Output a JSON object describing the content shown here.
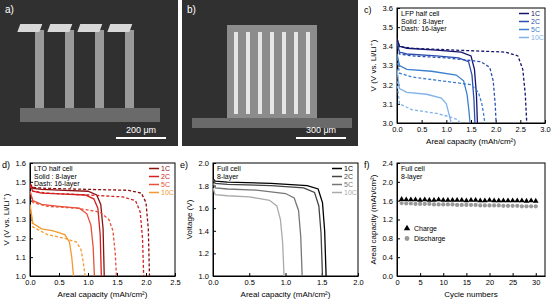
{
  "chart_data": [
    {
      "type": "image",
      "title": "a)",
      "annotations": [
        "200 μm"
      ]
    },
    {
      "type": "image",
      "title": "b)",
      "annotations": [
        "300 μm"
      ]
    },
    {
      "type": "line",
      "title": "c)",
      "x_label": "Areal capacity (mAh/cm²)",
      "y_label": "V (V vs. Li/Li⁺)",
      "annotations": [
        "LFP half cell",
        "Solid : 8-layer",
        "Dash: 16-layer"
      ],
      "xlim": [
        0,
        3.0
      ],
      "ylim": [
        3.0,
        3.6
      ],
      "xticks": [
        {
          "value": 0,
          "label": "0.0"
        },
        0.5,
        {
          "value": 1,
          "label": "1.0"
        },
        1.5,
        {
          "value": 2,
          "label": "2.0"
        },
        2.5,
        {
          "value": 3,
          "label": "3.0"
        }
      ],
      "yticks": [
        {
          "value": 3,
          "label": "3.0"
        },
        3.1,
        3.2,
        3.3,
        3.4,
        3.5,
        3.6
      ],
      "legend": "top-right",
      "series": [
        {
          "name": "1C",
          "color": "#14146e",
          "line_style": "solid",
          "x": [
            0,
            0.05,
            0.2,
            0.8,
            1.3,
            1.5,
            1.57,
            1.61,
            1.63
          ],
          "values": [
            3.44,
            3.4,
            3.39,
            3.38,
            3.37,
            3.35,
            3.28,
            3.15,
            3.0
          ]
        },
        {
          "name": "2C",
          "color": "#2b4fb0",
          "line_style": "solid",
          "x": [
            0,
            0.05,
            0.2,
            0.8,
            1.25,
            1.45,
            1.52,
            1.56,
            1.58
          ],
          "values": [
            3.42,
            3.37,
            3.36,
            3.35,
            3.34,
            3.32,
            3.25,
            3.12,
            3.0
          ]
        },
        {
          "name": "5C",
          "color": "#3b7fd0",
          "line_style": "solid",
          "x": [
            0,
            0.05,
            0.2,
            0.7,
            1.2,
            1.35,
            1.42,
            1.46,
            1.48
          ],
          "values": [
            3.36,
            3.3,
            3.28,
            3.27,
            3.25,
            3.22,
            3.15,
            3.06,
            3.0
          ]
        },
        {
          "name": "10C",
          "color": "#7fb2ea",
          "line_style": "solid",
          "x": [
            0,
            0.05,
            0.2,
            0.6,
            0.9,
            1.0,
            1.06,
            1.1
          ],
          "values": [
            3.28,
            3.18,
            3.16,
            3.15,
            3.13,
            3.1,
            3.04,
            3.0
          ]
        },
        {
          "name": "1C",
          "color": "#14146e",
          "line_style": "dashed",
          "x": [
            0,
            0.05,
            0.3,
            1.2,
            2.2,
            2.45,
            2.55,
            2.6,
            2.63
          ],
          "values": [
            3.44,
            3.4,
            3.39,
            3.38,
            3.37,
            3.35,
            3.28,
            3.15,
            3.0
          ]
        },
        {
          "name": "2C",
          "color": "#2b4fb0",
          "line_style": "dashed",
          "x": [
            0,
            0.05,
            0.3,
            1.0,
            1.7,
            1.88,
            1.95,
            1.99,
            2.01
          ],
          "values": [
            3.42,
            3.36,
            3.35,
            3.34,
            3.32,
            3.29,
            3.22,
            3.1,
            3.0
          ]
        },
        {
          "name": "5C",
          "color": "#3b7fd0",
          "line_style": "dashed",
          "x": [
            0,
            0.05,
            0.3,
            0.9,
            1.5,
            1.65,
            1.72,
            1.76,
            1.78
          ],
          "values": [
            3.34,
            3.26,
            3.24,
            3.22,
            3.2,
            3.16,
            3.1,
            3.04,
            3.0
          ]
        },
        {
          "name": "10C",
          "color": "#7fb2ea",
          "line_style": "dashed",
          "x": [
            0,
            0.05,
            0.3,
            0.8,
            1.1,
            1.2,
            1.25,
            1.28
          ],
          "values": [
            3.22,
            3.1,
            3.07,
            3.05,
            3.03,
            3.02,
            3.01,
            3.0
          ]
        }
      ]
    },
    {
      "type": "line",
      "title": "d)",
      "x_label": "Areal capacity (mAh/cm²)",
      "y_label": "V (V vs. Li/Li⁺)",
      "annotations": [
        "LTO half cell",
        "Solid : 8-layer",
        "Dash: 16-layer"
      ],
      "xlim": [
        0,
        2.5
      ],
      "ylim": [
        1.0,
        1.6
      ],
      "xticks": [
        {
          "value": 0,
          "label": "0.0"
        },
        0.5,
        {
          "value": 1,
          "label": "1.0"
        },
        1.5,
        {
          "value": 2,
          "label": "2.0"
        },
        2.5
      ],
      "yticks": [
        {
          "value": 1,
          "label": "1.0"
        },
        1.1,
        1.2,
        1.3,
        1.4,
        1.5,
        1.6
      ],
      "legend": "top-right",
      "series": [
        {
          "name": "1C",
          "color": "#8b1010",
          "line_style": "solid",
          "x": [
            0,
            0.05,
            0.2,
            0.6,
            1.0,
            1.15,
            1.22,
            1.26,
            1.28
          ],
          "values": [
            1.49,
            1.465,
            1.46,
            1.455,
            1.45,
            1.43,
            1.38,
            1.25,
            1.0
          ]
        },
        {
          "name": "2C",
          "color": "#d42020",
          "line_style": "solid",
          "x": [
            0,
            0.05,
            0.2,
            0.6,
            0.95,
            1.1,
            1.17,
            1.21,
            1.23
          ],
          "values": [
            1.48,
            1.45,
            1.44,
            1.435,
            1.43,
            1.41,
            1.36,
            1.22,
            1.0
          ]
        },
        {
          "name": "5C",
          "color": "#e8503a",
          "line_style": "solid",
          "x": [
            0,
            0.05,
            0.2,
            0.5,
            0.85,
            0.98,
            1.05,
            1.09,
            1.11
          ],
          "values": [
            1.45,
            1.4,
            1.38,
            1.37,
            1.36,
            1.33,
            1.27,
            1.15,
            1.0
          ]
        },
        {
          "name": "10C",
          "color": "#f39a30",
          "line_style": "solid",
          "x": [
            0,
            0.05,
            0.2,
            0.4,
            0.6,
            0.68,
            0.72,
            0.75
          ],
          "values": [
            1.38,
            1.28,
            1.25,
            1.24,
            1.22,
            1.18,
            1.1,
            1.0
          ]
        },
        {
          "name": "1C",
          "color": "#8b1010",
          "line_style": "dashed",
          "x": [
            0,
            0.05,
            0.3,
            1.0,
            1.7,
            1.92,
            2.0,
            2.04,
            2.06
          ],
          "values": [
            1.49,
            1.47,
            1.465,
            1.46,
            1.455,
            1.44,
            1.39,
            1.25,
            1.0
          ]
        },
        {
          "name": "2C",
          "color": "#d42020",
          "line_style": "dashed",
          "x": [
            0,
            0.05,
            0.3,
            1.0,
            1.6,
            1.82,
            1.9,
            1.94,
            1.96
          ],
          "values": [
            1.48,
            1.45,
            1.44,
            1.43,
            1.42,
            1.4,
            1.34,
            1.2,
            1.0
          ]
        },
        {
          "name": "5C",
          "color": "#e8503a",
          "line_style": "dashed",
          "x": [
            0,
            0.05,
            0.3,
            0.8,
            1.2,
            1.36,
            1.43,
            1.47,
            1.49
          ],
          "values": [
            1.45,
            1.39,
            1.37,
            1.36,
            1.34,
            1.3,
            1.24,
            1.12,
            1.0
          ]
        },
        {
          "name": "10C",
          "color": "#f39a30",
          "line_style": "dashed",
          "x": [
            0,
            0.05,
            0.3,
            0.6,
            0.8,
            0.88,
            0.92,
            0.95
          ],
          "values": [
            1.37,
            1.26,
            1.22,
            1.2,
            1.18,
            1.14,
            1.07,
            1.0
          ]
        }
      ]
    },
    {
      "type": "line",
      "title": "e)",
      "x_label": "Areal capacity (mAh/cm²)",
      "y_label": "Voltage (V)",
      "annotations": [
        "Full cell",
        "8-layer"
      ],
      "xlim": [
        0,
        2.0
      ],
      "ylim": [
        1.0,
        2.0
      ],
      "xticks": [
        {
          "value": 0,
          "label": "0.0"
        },
        0.5,
        {
          "value": 1,
          "label": "1.0"
        },
        1.5,
        {
          "value": 2,
          "label": "2.0"
        }
      ],
      "yticks": [
        {
          "value": 1,
          "label": "1.0"
        },
        1.2,
        1.4,
        1.6,
        1.8,
        {
          "value": 2,
          "label": "2.0"
        }
      ],
      "legend": "top-right",
      "series": [
        {
          "name": "1C",
          "color": "#000000",
          "line_style": "solid",
          "x": [
            0,
            0.03,
            0.2,
            0.8,
            1.3,
            1.45,
            1.51,
            1.54,
            1.56
          ],
          "values": [
            1.86,
            1.84,
            1.83,
            1.82,
            1.8,
            1.77,
            1.65,
            1.4,
            1.0
          ]
        },
        {
          "name": "2C",
          "color": "#444444",
          "line_style": "solid",
          "x": [
            0,
            0.03,
            0.2,
            0.8,
            1.25,
            1.4,
            1.46,
            1.49,
            1.51
          ],
          "values": [
            1.85,
            1.82,
            1.81,
            1.8,
            1.78,
            1.74,
            1.62,
            1.38,
            1.0
          ]
        },
        {
          "name": "5C",
          "color": "#777777",
          "line_style": "solid",
          "x": [
            0,
            0.03,
            0.2,
            0.6,
            1.0,
            1.12,
            1.18,
            1.21,
            1.23
          ],
          "values": [
            1.82,
            1.78,
            1.77,
            1.76,
            1.73,
            1.69,
            1.58,
            1.35,
            1.0
          ]
        },
        {
          "name": "10C",
          "color": "#aaaaaa",
          "line_style": "solid",
          "x": [
            0,
            0.03,
            0.2,
            0.5,
            0.78,
            0.88,
            0.93,
            0.96,
            0.98
          ],
          "values": [
            1.78,
            1.72,
            1.71,
            1.7,
            1.67,
            1.62,
            1.5,
            1.3,
            1.0
          ]
        }
      ]
    },
    {
      "type": "scatter",
      "title": "f)",
      "x_label": "Cycle numbers",
      "y_label": "Areal capacity (mAh/cm²)",
      "annotations": [
        "Full cell",
        "8-layer"
      ],
      "xlim": [
        0,
        32
      ],
      "ylim": [
        0,
        2.4
      ],
      "xticks": [
        0,
        5,
        10,
        15,
        20,
        25,
        30
      ],
      "yticks": [
        {
          "value": 0,
          "label": "0.0"
        },
        0.4,
        0.8,
        1.2,
        1.6,
        {
          "value": 2,
          "label": "2.0"
        },
        2.4
      ],
      "legend": "bottom-left",
      "x": [
        1,
        2,
        3,
        4,
        5,
        6,
        7,
        8,
        9,
        10,
        11,
        12,
        13,
        14,
        15,
        16,
        17,
        18,
        19,
        20,
        21,
        22,
        23,
        24,
        25,
        26,
        27,
        28,
        29,
        30
      ],
      "series": [
        {
          "name": "Charge",
          "color": "#000000",
          "marker": "triangle",
          "values": [
            1.63,
            1.62,
            1.62,
            1.62,
            1.61,
            1.62,
            1.61,
            1.61,
            1.62,
            1.61,
            1.61,
            1.61,
            1.61,
            1.61,
            1.6,
            1.61,
            1.61,
            1.6,
            1.6,
            1.61,
            1.6,
            1.6,
            1.6,
            1.6,
            1.6,
            1.6,
            1.6,
            1.59,
            1.6,
            1.59
          ]
        },
        {
          "name": "Discharge",
          "color": "#999999",
          "marker": "circle",
          "values": [
            1.55,
            1.54,
            1.54,
            1.53,
            1.53,
            1.53,
            1.53,
            1.52,
            1.52,
            1.52,
            1.52,
            1.52,
            1.51,
            1.51,
            1.51,
            1.51,
            1.51,
            1.5,
            1.5,
            1.5,
            1.5,
            1.5,
            1.49,
            1.49,
            1.49,
            1.49,
            1.48,
            1.48,
            1.48,
            1.48
          ]
        }
      ]
    }
  ]
}
